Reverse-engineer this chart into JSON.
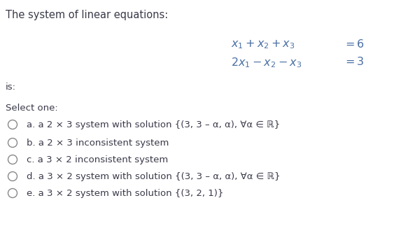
{
  "title": "The system of linear equations:",
  "is_label": "is:",
  "select_one": "Select one:",
  "eq_color": "#4a6fa5",
  "text_color": "#3a3a4a",
  "bg_color": "#ffffff",
  "fontsize_title": 10.5,
  "fontsize_body": 9.5,
  "fontsize_eq": 11.5,
  "circle_color": "#888888",
  "option_texts": [
    "a. a 2 × 3 system with solution {(3, 3 – α, α), ∀α ∈ ℝ}",
    "b. a 2 × 3 inconsistent system",
    "c. a 3 × 2 inconsistent system",
    "d. a 3 × 2 system with solution {(3, 3 – α, α), ∀α ∈ ℝ}",
    "e. a 3 × 2 system with solution {(3, 2, 1)}"
  ]
}
